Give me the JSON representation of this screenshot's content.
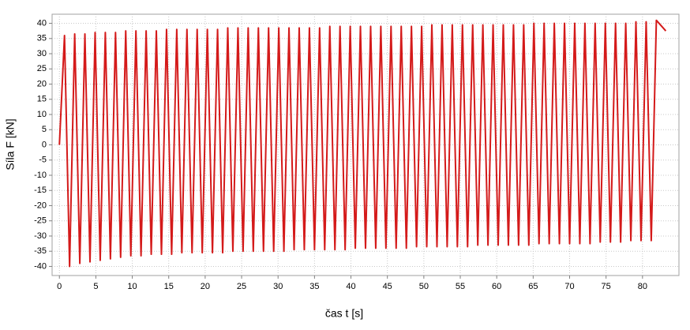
{
  "chart_data": {
    "type": "line",
    "x_label": "čas t [s]",
    "y_label": "Síla F [kN]",
    "xlim": [
      -1,
      85
    ],
    "ylim": [
      -43,
      43
    ],
    "xticks": [
      0,
      5,
      10,
      15,
      20,
      25,
      30,
      35,
      40,
      45,
      50,
      55,
      60,
      65,
      70,
      75,
      80
    ],
    "yticks": [
      -40,
      -35,
      -30,
      -25,
      -20,
      -15,
      -10,
      -5,
      0,
      5,
      10,
      15,
      20,
      25,
      30,
      35,
      40
    ],
    "grid": true,
    "series": [
      {
        "color": "#d41a1a",
        "x": [
          0,
          0.7,
          1.4,
          2.1,
          2.8,
          3.5,
          4.2,
          4.9,
          5.6,
          6.3,
          7.0,
          7.7,
          8.4,
          9.1,
          9.8,
          10.5,
          11.2,
          11.9,
          12.6,
          13.3,
          14.0,
          14.7,
          15.4,
          16.1,
          16.8,
          17.5,
          18.2,
          18.9,
          19.6,
          20.3,
          21.0,
          21.7,
          22.4,
          23.1,
          23.8,
          24.5,
          25.2,
          25.9,
          26.6,
          27.3,
          28.0,
          28.7,
          29.4,
          30.1,
          30.8,
          31.5,
          32.2,
          32.9,
          33.6,
          34.3,
          35.0,
          35.7,
          36.4,
          37.1,
          37.8,
          38.5,
          39.2,
          39.9,
          40.6,
          41.3,
          42.0,
          42.7,
          43.4,
          44.1,
          44.8,
          45.5,
          46.2,
          46.9,
          47.6,
          48.3,
          49.0,
          49.7,
          50.4,
          51.1,
          51.8,
          52.5,
          53.2,
          53.9,
          54.6,
          55.3,
          56.0,
          56.7,
          57.4,
          58.1,
          58.8,
          59.5,
          60.2,
          60.9,
          61.6,
          62.3,
          63.0,
          63.7,
          64.4,
          65.1,
          65.8,
          66.5,
          67.2,
          67.9,
          68.6,
          69.3,
          70.0,
          70.7,
          71.4,
          72.1,
          72.8,
          73.5,
          74.2,
          74.9,
          75.6,
          76.3,
          77.0,
          77.7,
          78.4,
          79.1,
          79.8,
          80.5,
          81.2,
          81.9,
          83.2
        ],
        "values": [
          0,
          36,
          -40,
          36.5,
          -39,
          36.5,
          -38.5,
          37,
          -38,
          37,
          -37.5,
          37,
          -37,
          37.5,
          -36.5,
          37.5,
          -36.5,
          37.5,
          -36,
          37.5,
          -36,
          38,
          -36,
          38,
          -35.5,
          38,
          -35.5,
          38,
          -35.5,
          38,
          -35.5,
          38,
          -35.5,
          38.5,
          -35,
          38.5,
          -35,
          38.5,
          -35,
          38.5,
          -35,
          38.5,
          -35,
          38.5,
          -35,
          38.5,
          -34.5,
          38.5,
          -34.5,
          38.5,
          -34.5,
          38.5,
          -34.5,
          39,
          -34.5,
          39,
          -34.5,
          39,
          -34,
          39,
          -34,
          39,
          -34,
          39,
          -34,
          39,
          -34,
          39,
          -34,
          39,
          -33.5,
          39,
          -33.5,
          39.5,
          -33.5,
          39.5,
          -33.5,
          39.5,
          -33.5,
          39.5,
          -33.5,
          39.5,
          -33,
          39.5,
          -33,
          39.5,
          -33,
          39.5,
          -33,
          39.5,
          -33,
          39.5,
          -33,
          40,
          -32.5,
          40,
          -32.5,
          40,
          -32.5,
          40,
          -32.5,
          40,
          -32.5,
          40,
          -32.5,
          40,
          -32,
          40,
          -32,
          40,
          -32,
          40,
          -31.5,
          40.5,
          -31.5,
          40.5,
          -31.5,
          41,
          37.5
        ]
      }
    ]
  }
}
